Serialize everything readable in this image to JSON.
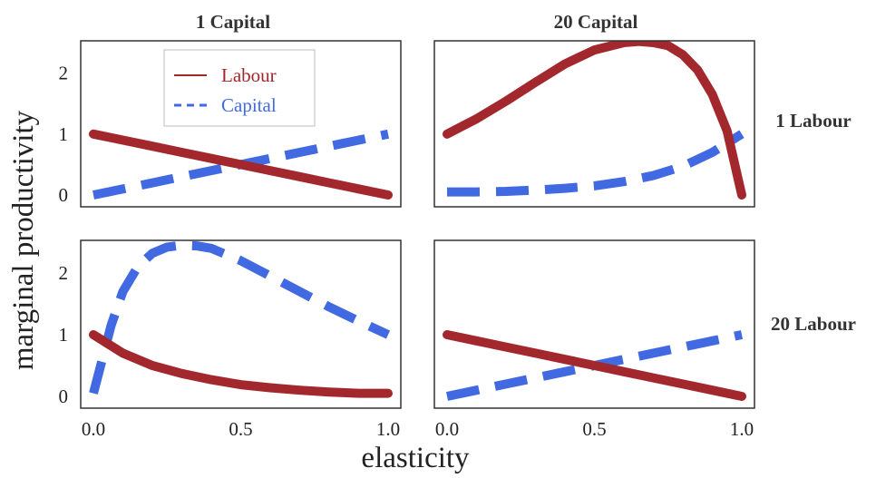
{
  "chart_data": {
    "type": "line",
    "xlabel": "elasticity",
    "ylabel": "marginal productivity",
    "xlim": [
      0,
      1
    ],
    "ylim": [
      0,
      2.5
    ],
    "x_ticks": [
      0.0,
      0.5,
      1.0
    ],
    "x_tick_labels": [
      "0.0",
      "0.5",
      "1.0"
    ],
    "y_ticks": [
      0,
      1,
      2
    ],
    "y_tick_labels": [
      "0",
      "1",
      "2"
    ],
    "grid": false,
    "legend": {
      "placement": "top-left of top-left panel",
      "entries": [
        {
          "name": "Labour",
          "color": "#a3282d",
          "style": "solid"
        },
        {
          "name": "Capital",
          "color": "#4169e1",
          "style": "dashed"
        }
      ]
    },
    "panels": [
      {
        "col_title": "1 Capital",
        "row_title": "1 Labour",
        "series": [
          {
            "name": "Labour",
            "x": [
              0.0,
              0.1,
              0.2,
              0.3,
              0.4,
              0.5,
              0.6,
              0.7,
              0.8,
              0.9,
              1.0
            ],
            "y": [
              1.0,
              0.9,
              0.8,
              0.7,
              0.6,
              0.5,
              0.4,
              0.3,
              0.2,
              0.1,
              0.0
            ]
          },
          {
            "name": "Capital",
            "x": [
              0.0,
              0.1,
              0.2,
              0.3,
              0.4,
              0.5,
              0.6,
              0.7,
              0.8,
              0.9,
              1.0
            ],
            "y": [
              0.0,
              0.1,
              0.2,
              0.3,
              0.4,
              0.5,
              0.6,
              0.7,
              0.8,
              0.9,
              1.0
            ]
          }
        ]
      },
      {
        "col_title": "20 Capital",
        "row_title": "1 Labour",
        "series": [
          {
            "name": "Labour",
            "x": [
              0.0,
              0.1,
              0.2,
              0.3,
              0.4,
              0.5,
              0.6,
              0.65,
              0.7,
              0.75,
              0.8,
              0.85,
              0.9,
              0.95,
              1.0
            ],
            "y": [
              1.0,
              1.25,
              1.54,
              1.85,
              2.15,
              2.38,
              2.5,
              2.52,
              2.5,
              2.45,
              2.3,
              2.05,
              1.65,
              1.05,
              0.0
            ]
          },
          {
            "name": "Capital",
            "x": [
              0.0,
              0.1,
              0.2,
              0.3,
              0.4,
              0.5,
              0.6,
              0.7,
              0.8,
              0.9,
              1.0
            ],
            "y": [
              0.05,
              0.05,
              0.06,
              0.08,
              0.11,
              0.15,
              0.22,
              0.32,
              0.47,
              0.7,
              1.0
            ]
          }
        ]
      },
      {
        "col_title": "1 Capital",
        "row_title": "20 Labour",
        "series": [
          {
            "name": "Labour",
            "x": [
              0.0,
              0.1,
              0.2,
              0.3,
              0.4,
              0.5,
              0.6,
              0.7,
              0.8,
              0.9,
              1.0
            ],
            "y": [
              1.0,
              0.7,
              0.5,
              0.37,
              0.27,
              0.19,
              0.14,
              0.1,
              0.07,
              0.05,
              0.05
            ]
          },
          {
            "name": "Capital",
            "x": [
              0.0,
              0.03,
              0.06,
              0.1,
              0.15,
              0.2,
              0.25,
              0.3,
              0.35,
              0.4,
              0.5,
              0.6,
              0.7,
              0.8,
              0.9,
              1.0
            ],
            "y": [
              0.05,
              0.6,
              1.15,
              1.7,
              2.1,
              2.32,
              2.42,
              2.45,
              2.44,
              2.4,
              2.2,
              1.95,
              1.7,
              1.45,
              1.22,
              1.0
            ]
          }
        ]
      },
      {
        "col_title": "20 Capital",
        "row_title": "20 Labour",
        "series": [
          {
            "name": "Labour",
            "x": [
              0.0,
              0.1,
              0.2,
              0.3,
              0.4,
              0.5,
              0.6,
              0.7,
              0.8,
              0.9,
              1.0
            ],
            "y": [
              1.0,
              0.9,
              0.8,
              0.7,
              0.6,
              0.5,
              0.4,
              0.3,
              0.2,
              0.1,
              0.0
            ]
          },
          {
            "name": "Capital",
            "x": [
              0.0,
              0.1,
              0.2,
              0.3,
              0.4,
              0.5,
              0.6,
              0.7,
              0.8,
              0.9,
              1.0
            ],
            "y": [
              0.0,
              0.1,
              0.2,
              0.3,
              0.4,
              0.5,
              0.6,
              0.7,
              0.8,
              0.9,
              1.0
            ]
          }
        ]
      }
    ]
  }
}
